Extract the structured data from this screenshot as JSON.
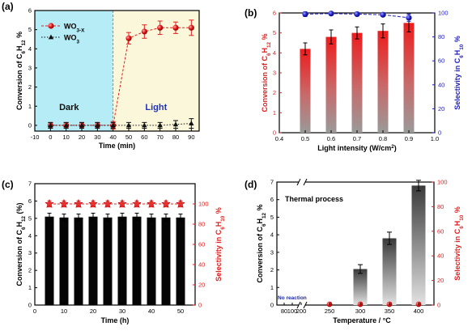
{
  "chart_data": [
    {
      "panel": "(a)",
      "type": "line",
      "xlabel": "Time (min)",
      "ylabel": "Conversion of C6H12 %",
      "xlim": [
        -10,
        95
      ],
      "ylim": [
        -0.3,
        6
      ],
      "xticks": [
        "-10",
        "0",
        "10",
        "20",
        "30",
        "40",
        "50",
        "60",
        "70",
        "80",
        "90"
      ],
      "yticks": [
        "0",
        "1",
        "2",
        "3",
        "4",
        "5",
        "6"
      ],
      "regions": [
        {
          "label": "Dark",
          "from": -10,
          "to": 40,
          "color": "#b5ecf5"
        },
        {
          "label": "Light",
          "from": 40,
          "to": 95,
          "color": "#fbf7da"
        }
      ],
      "series": [
        {
          "name": "WO3-x",
          "legend_main": "WO",
          "legend_sub": "3-X",
          "color": "#e02020",
          "x": [
            0,
            10,
            20,
            30,
            40,
            50,
            60,
            70,
            80,
            90
          ],
          "y": [
            0,
            0,
            0,
            0,
            0,
            4.55,
            4.9,
            5.1,
            5.1,
            5.1
          ],
          "err": [
            0.15,
            0.15,
            0.15,
            0.15,
            0.2,
            0.3,
            0.35,
            0.35,
            0.3,
            0.4
          ]
        },
        {
          "name": "WO3",
          "legend_main": "WO",
          "legend_sub": "3",
          "color": "#111111",
          "x": [
            0,
            10,
            20,
            30,
            40,
            50,
            60,
            70,
            80,
            90
          ],
          "y": [
            0,
            0,
            0,
            0,
            0,
            0,
            0,
            0,
            0.05,
            0.1
          ],
          "err": [
            0.15,
            0.15,
            0.15,
            0.15,
            0.15,
            0.15,
            0.15,
            0.15,
            0.2,
            0.25
          ]
        }
      ]
    },
    {
      "panel": "(b)",
      "type": "bar",
      "xlabel": "Light intensity (W/cm2)",
      "ylabel_left": "Conversion of C6H12 %",
      "ylabel_right": "Selectivity in C6H10 %",
      "xlim": [
        0.4,
        1.0
      ],
      "ylim_left": [
        0,
        6
      ],
      "ylim_right": [
        0,
        100
      ],
      "xticks": [
        "0.4",
        "0.5",
        "0.6",
        "0.7",
        "0.8",
        "0.9",
        "1.0"
      ],
      "yticks_left": [
        "0",
        "1",
        "2",
        "3",
        "4",
        "5",
        "6"
      ],
      "yticks_right": [
        "0",
        "20",
        "40",
        "60",
        "80",
        "100"
      ],
      "x": [
        0.5,
        0.6,
        0.7,
        0.8,
        0.9
      ],
      "conversion": [
        4.2,
        4.8,
        5.0,
        5.1,
        5.5
      ],
      "conversion_err": [
        0.3,
        0.35,
        0.3,
        0.35,
        0.45
      ],
      "selectivity": [
        99,
        99.5,
        99,
        98.5,
        96
      ],
      "selectivity_err": [
        2,
        1.5,
        1.5,
        1.5,
        3
      ]
    },
    {
      "panel": "(c)",
      "type": "bar",
      "xlabel": "Time (h)",
      "ylabel_left": "Conversion of C6H12 (%)",
      "ylabel_right": "Selectivity in C6H10 %",
      "xlim": [
        0,
        55
      ],
      "ylim_left": [
        0,
        7
      ],
      "ylim_right": [
        0,
        120
      ],
      "xticks": [
        "0",
        "10",
        "20",
        "30",
        "40",
        "50"
      ],
      "yticks_left": [
        "0",
        "1",
        "2",
        "3",
        "4",
        "5",
        "6",
        "7"
      ],
      "yticks_right": [
        "0",
        "20",
        "40",
        "60",
        "80",
        "100"
      ],
      "x": [
        5,
        10,
        15,
        20,
        25,
        30,
        35,
        40,
        45,
        50
      ],
      "conversion": [
        5.1,
        5.05,
        5.05,
        5.1,
        5.05,
        5.1,
        5.1,
        5.05,
        5.05,
        5.05
      ],
      "conversion_err": [
        0.2,
        0.2,
        0.2,
        0.2,
        0.2,
        0.2,
        0.2,
        0.2,
        0.2,
        0.2
      ],
      "selectivity": [
        100,
        100,
        100,
        100,
        100,
        100,
        100,
        100,
        100,
        100
      ],
      "selectivity_err": [
        3,
        3,
        3,
        3,
        3,
        3,
        3,
        3,
        3,
        3
      ]
    },
    {
      "panel": "(d)",
      "type": "bar",
      "xlabel": "Temperature / °C",
      "ylabel_left": "Conversion of C6H12 %",
      "ylabel_right": "Selectivity in C6H10 %",
      "ylim_left": [
        0,
        7
      ],
      "ylim_right": [
        0,
        100
      ],
      "xticks": [
        "80",
        "100",
        "200",
        "250",
        "300",
        "350",
        "400"
      ],
      "yticks_left": [
        "0",
        "1",
        "2",
        "3",
        "4",
        "5",
        "6",
        "7"
      ],
      "yticks_right": [
        "0",
        "20",
        "40",
        "60",
        "80",
        "100"
      ],
      "annotation_title": "Thermal process",
      "annotation_no_reaction": "No reaction",
      "x": [
        250,
        300,
        350,
        400
      ],
      "conversion": [
        0,
        2.05,
        3.8,
        6.8
      ],
      "conversion_err": [
        0,
        0.25,
        0.35,
        0.3
      ],
      "selectivity_points": [
        250,
        300,
        350,
        400
      ]
    }
  ]
}
